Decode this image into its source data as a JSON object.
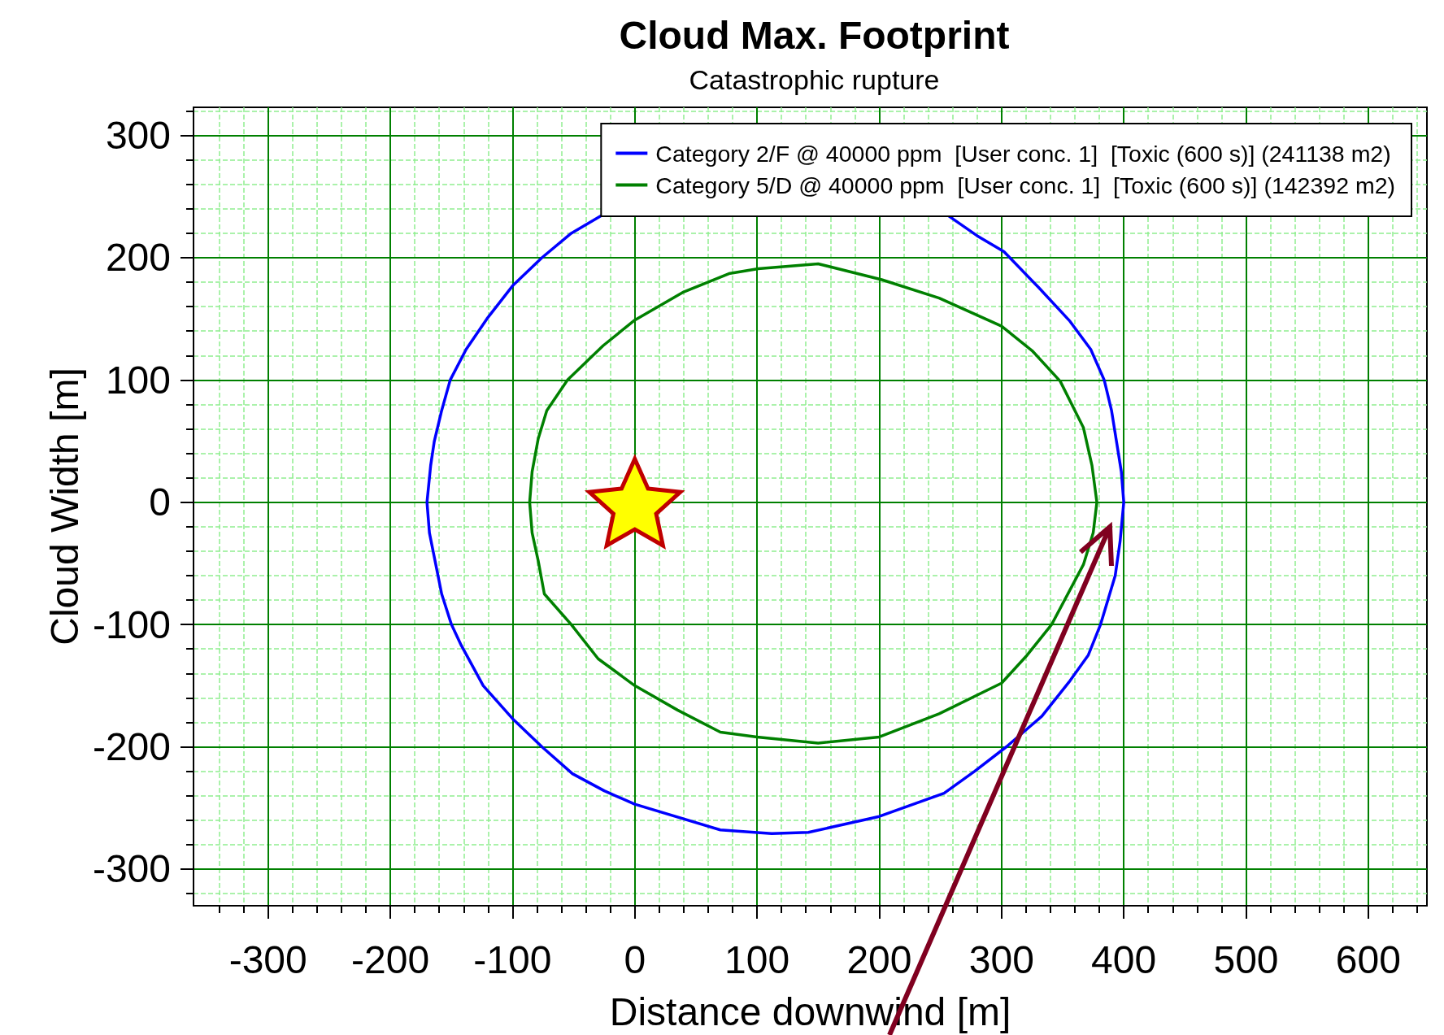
{
  "chart_data": {
    "type": "line",
    "title": "Cloud Max. Footprint",
    "subtitle": "Catastrophic rupture",
    "xlabel": "Distance downwind [m]",
    "ylabel": "Cloud Width [m]",
    "xlim": [
      -361,
      648
    ],
    "ylim": [
      -330,
      323
    ],
    "xticks": [
      {
        "value": -340,
        "label": null
      },
      {
        "value": -320,
        "label": null
      },
      -300,
      {
        "value": -280,
        "label": null
      },
      {
        "value": -260,
        "label": null
      },
      {
        "value": -240,
        "label": null
      },
      {
        "value": -220,
        "label": null
      },
      -200,
      {
        "value": -180,
        "label": null
      },
      {
        "value": -160,
        "label": null
      },
      {
        "value": -140,
        "label": null
      },
      {
        "value": -120,
        "label": null
      },
      -100,
      {
        "value": -80,
        "label": null
      },
      {
        "value": -60,
        "label": null
      },
      {
        "value": -40,
        "label": null
      },
      {
        "value": -20,
        "label": null
      },
      0,
      {
        "value": 20,
        "label": null
      },
      {
        "value": 40,
        "label": null
      },
      {
        "value": 60,
        "label": null
      },
      {
        "value": 80,
        "label": null
      },
      100,
      {
        "value": 120,
        "label": null
      },
      {
        "value": 140,
        "label": null
      },
      {
        "value": 160,
        "label": null
      },
      {
        "value": 180,
        "label": null
      },
      200,
      {
        "value": 220,
        "label": null
      },
      {
        "value": 240,
        "label": null
      },
      {
        "value": 260,
        "label": null
      },
      {
        "value": 280,
        "label": null
      },
      300,
      {
        "value": 320,
        "label": null
      },
      {
        "value": 340,
        "label": null
      },
      {
        "value": 360,
        "label": null
      },
      {
        "value": 380,
        "label": null
      },
      400,
      {
        "value": 420,
        "label": null
      },
      {
        "value": 440,
        "label": null
      },
      {
        "value": 460,
        "label": null
      },
      {
        "value": 480,
        "label": null
      },
      500,
      {
        "value": 520,
        "label": null
      },
      {
        "value": 540,
        "label": null
      },
      {
        "value": 560,
        "label": null
      },
      {
        "value": 580,
        "label": null
      },
      600,
      {
        "value": 620,
        "label": null
      },
      {
        "value": 640,
        "label": null
      }
    ],
    "yticks": [
      {
        "value": -320,
        "label": null
      },
      -300,
      {
        "value": -280,
        "label": null
      },
      {
        "value": -260,
        "label": null
      },
      {
        "value": -240,
        "label": null
      },
      {
        "value": -220,
        "label": null
      },
      -200,
      {
        "value": -180,
        "label": null
      },
      {
        "value": -160,
        "label": null
      },
      {
        "value": -140,
        "label": null
      },
      {
        "value": -120,
        "label": null
      },
      -100,
      {
        "value": -80,
        "label": null
      },
      {
        "value": -60,
        "label": null
      },
      {
        "value": -40,
        "label": null
      },
      {
        "value": -20,
        "label": null
      },
      0,
      {
        "value": 20,
        "label": null
      },
      {
        "value": 40,
        "label": null
      },
      {
        "value": 60,
        "label": null
      },
      {
        "value": 80,
        "label": null
      },
      100,
      {
        "value": 120,
        "label": null
      },
      {
        "value": 140,
        "label": null
      },
      {
        "value": 160,
        "label": null
      },
      {
        "value": 180,
        "label": null
      },
      200,
      {
        "value": 220,
        "label": null
      },
      {
        "value": 240,
        "label": null
      },
      {
        "value": 260,
        "label": null
      },
      {
        "value": 280,
        "label": null
      },
      300,
      {
        "value": 320,
        "label": null
      }
    ],
    "grid": true,
    "legend": "top right",
    "marker": "none",
    "line_style": "solid",
    "series": [
      {
        "name": "Category 2/F @ 40000 ppm  [User conc. 1]  [Toxic (600 s)] (241138 m2)",
        "color": "#0000ff",
        "x": [
          -170,
          -167,
          -164,
          -158,
          -151,
          -138,
          -121,
          -100,
          -76,
          -52,
          -28,
          115,
          257,
          280,
          302,
          330,
          356,
          373,
          384,
          390,
          394,
          398,
          400,
          397,
          393,
          381,
          371,
          356,
          333,
          304,
          278,
          253,
          200,
          142,
          112,
          70,
          0,
          -25,
          -51,
          -76,
          -100,
          -124,
          -142,
          -150,
          -158,
          -163,
          -168,
          -170
        ],
        "values": [
          0,
          30,
          50,
          75,
          100,
          125,
          150,
          177,
          200,
          220,
          234,
          null,
          234,
          218,
          205,
          176,
          148,
          125,
          100,
          75,
          50,
          25,
          0,
          -32,
          -60,
          -100,
          -125,
          -146,
          -175,
          -200,
          -220,
          -238,
          -257,
          -270,
          -271,
          -268,
          -247,
          -236,
          -222,
          -200,
          -177,
          -150,
          -117,
          -100,
          -75,
          -50,
          -25,
          0
        ]
      },
      {
        "name": "Category 5/D @ 40000 ppm  [User conc. 1]  [Toxic (600 s)] (142392 m2)",
        "color": "#008000",
        "x": [
          -86,
          -84,
          -79,
          -72,
          -55,
          -26,
          0,
          40,
          77,
          101,
          150,
          202,
          249,
          300,
          325,
          348,
          367,
          374,
          378,
          375,
          367,
          341,
          321,
          300,
          249,
          200,
          150,
          100,
          70,
          35,
          0,
          -30,
          -52,
          -74,
          -79,
          -84,
          -86,
          -84
        ],
        "values": [
          0,
          25,
          52,
          75,
          100,
          128,
          149,
          172,
          187,
          191,
          195,
          182,
          167,
          144,
          124,
          99,
          61,
          30,
          0,
          -25,
          -51,
          -100,
          -125,
          -148,
          -173,
          -192,
          -197,
          -192,
          -188,
          -170,
          -150,
          -128,
          -100,
          -75,
          -48,
          -25,
          0,
          25
        ]
      },
      {
        "type": "scatter",
        "color": "#ffff00",
        "marker": "star",
        "x": [
          0
        ],
        "values": [
          0
        ]
      }
    ]
  }
}
